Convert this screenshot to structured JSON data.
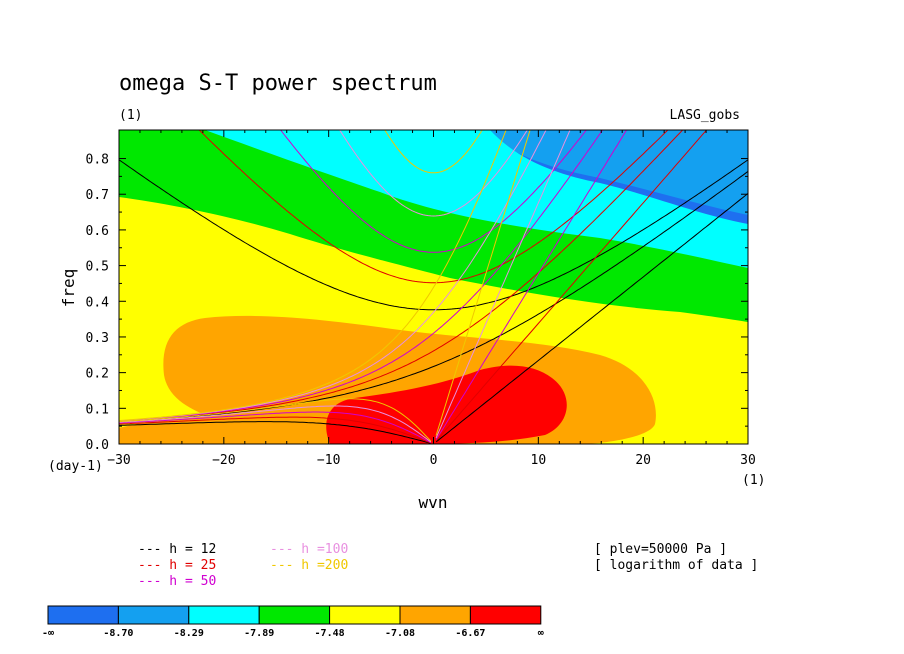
{
  "chart_data": {
    "type": "contour",
    "title": "omega S-T power spectrum",
    "units_label": "(1)",
    "dataset_label": "LASG_gobs",
    "xlabel": "wvn",
    "ylabel": "freq",
    "x_unit": "(1)",
    "y_unit": "(day-1)",
    "xlim": [
      -30,
      30
    ],
    "ylim": [
      0,
      0.88
    ],
    "x_ticks": [
      "−30",
      "−20",
      "−10",
      "0",
      "10",
      "20",
      "30"
    ],
    "y_ticks": [
      "0.0",
      "0.1",
      "0.2",
      "0.3",
      "0.4",
      "0.5",
      "0.6",
      "0.7",
      "0.8"
    ],
    "info_lines": [
      "[ plev=50000 Pa ]",
      "[ logarithm of data ]"
    ],
    "colorbar": {
      "colors": [
        "#1e6ff0",
        "#14a0f0",
        "#00ffff",
        "#00e800",
        "#ffff00",
        "#ffa500",
        "#ff0000"
      ],
      "labels": [
        "-∞",
        "-8.70",
        "-8.29",
        "-7.89",
        "-7.48",
        "-7.08",
        "-6.67",
        "∞"
      ]
    },
    "dispersion_curves": [
      {
        "name": "h = 12",
        "color": "#000000",
        "h": 12
      },
      {
        "name": "h = 25",
        "color": "#e00000",
        "h": 25
      },
      {
        "name": "h = 50",
        "color": "#d000d0",
        "h": 50
      },
      {
        "name": "h =100",
        "color": "#e890e0",
        "h": 100
      },
      {
        "name": "h =200",
        "color": "#f0c800",
        "h": 200
      }
    ]
  }
}
